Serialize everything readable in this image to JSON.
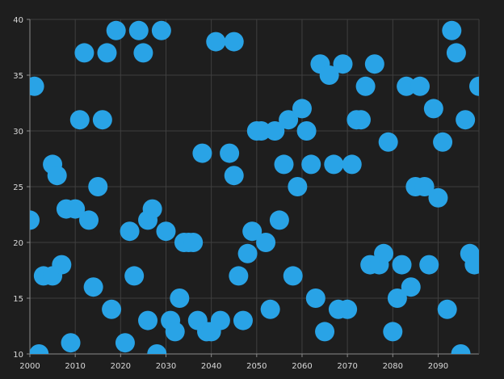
{
  "chart_data": {
    "type": "scatter",
    "title": "",
    "xlabel": "",
    "ylabel": "",
    "xlim": [
      2000,
      2099
    ],
    "ylim": [
      10,
      40
    ],
    "x_ticks": [
      2000,
      2010,
      2020,
      2030,
      2040,
      2050,
      2060,
      2070,
      2080,
      2090
    ],
    "y_ticks": [
      10,
      15,
      20,
      25,
      30,
      35,
      40
    ],
    "grid": true,
    "legend": "none",
    "colors": {
      "background": "#1e1e1e",
      "grid": "#3f3f3f",
      "axis": "#8a8a8a",
      "text": "#d9d9d9",
      "marker": "#29a3e6"
    },
    "series": [
      {
        "points": [
          [
            2000,
            22
          ],
          [
            2001,
            34
          ],
          [
            2002,
            10
          ],
          [
            2003,
            17
          ],
          [
            2005,
            17
          ],
          [
            2005,
            27
          ],
          [
            2006,
            26
          ],
          [
            2007,
            18
          ],
          [
            2008,
            23
          ],
          [
            2009,
            11
          ],
          [
            2010,
            23
          ],
          [
            2011,
            31
          ],
          [
            2012,
            37
          ],
          [
            2013,
            22
          ],
          [
            2014,
            16
          ],
          [
            2015,
            25
          ],
          [
            2016,
            31
          ],
          [
            2017,
            37
          ],
          [
            2018,
            14
          ],
          [
            2019,
            39
          ],
          [
            2021,
            11
          ],
          [
            2022,
            21
          ],
          [
            2023,
            17
          ],
          [
            2024,
            39
          ],
          [
            2025,
            37
          ],
          [
            2026,
            22
          ],
          [
            2026,
            13
          ],
          [
            2027,
            23
          ],
          [
            2028,
            10
          ],
          [
            2029,
            39
          ],
          [
            2030,
            21
          ],
          [
            2031,
            13
          ],
          [
            2032,
            12
          ],
          [
            2033,
            15
          ],
          [
            2034,
            20
          ],
          [
            2035,
            20
          ],
          [
            2036,
            20
          ],
          [
            2037,
            13
          ],
          [
            2038,
            28
          ],
          [
            2039,
            12
          ],
          [
            2040,
            12
          ],
          [
            2041,
            38
          ],
          [
            2042,
            13
          ],
          [
            2044,
            28
          ],
          [
            2045,
            26
          ],
          [
            2045,
            38
          ],
          [
            2046,
            17
          ],
          [
            2047,
            13
          ],
          [
            2048,
            19
          ],
          [
            2049,
            21
          ],
          [
            2050,
            30
          ],
          [
            2051,
            30
          ],
          [
            2052,
            20
          ],
          [
            2053,
            14
          ],
          [
            2054,
            30
          ],
          [
            2055,
            22
          ],
          [
            2056,
            27
          ],
          [
            2057,
            31
          ],
          [
            2058,
            17
          ],
          [
            2059,
            25
          ],
          [
            2060,
            32
          ],
          [
            2061,
            30
          ],
          [
            2062,
            27
          ],
          [
            2063,
            15
          ],
          [
            2064,
            36
          ],
          [
            2065,
            12
          ],
          [
            2066,
            35
          ],
          [
            2067,
            27
          ],
          [
            2068,
            14
          ],
          [
            2069,
            36
          ],
          [
            2070,
            14
          ],
          [
            2071,
            27
          ],
          [
            2072,
            31
          ],
          [
            2073,
            31
          ],
          [
            2074,
            34
          ],
          [
            2075,
            18
          ],
          [
            2076,
            36
          ],
          [
            2077,
            18
          ],
          [
            2078,
            19
          ],
          [
            2079,
            29
          ],
          [
            2080,
            12
          ],
          [
            2081,
            15
          ],
          [
            2082,
            18
          ],
          [
            2083,
            34
          ],
          [
            2084,
            16
          ],
          [
            2085,
            25
          ],
          [
            2086,
            34
          ],
          [
            2087,
            25
          ],
          [
            2088,
            18
          ],
          [
            2089,
            32
          ],
          [
            2090,
            24
          ],
          [
            2091,
            29
          ],
          [
            2092,
            14
          ],
          [
            2093,
            39
          ],
          [
            2094,
            37
          ],
          [
            2095,
            10
          ],
          [
            2096,
            31
          ],
          [
            2097,
            19
          ],
          [
            2098,
            18
          ],
          [
            2099,
            34
          ]
        ]
      }
    ]
  }
}
